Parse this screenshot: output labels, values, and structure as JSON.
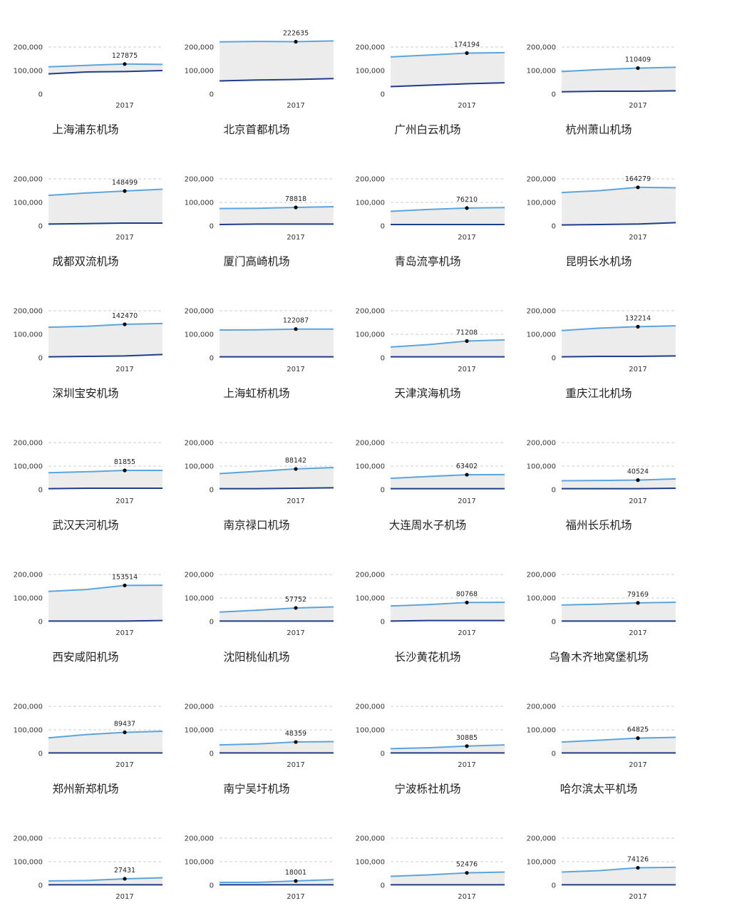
{
  "chart_data": {
    "type": "area",
    "x_tick_label": "2017",
    "y_ticks": [
      "200,000",
      "100,000",
      "0"
    ],
    "ylim": [
      0,
      200000
    ],
    "grid": true,
    "colors": {
      "upper": "#5aa5e0",
      "lower": "#1f3c88",
      "fill": "#ececec",
      "marker": "#000000"
    },
    "panels": [
      {
        "title": "上海浦东机场",
        "label": "127875",
        "upper": [
          116000,
          122000,
          127875,
          126000
        ],
        "lower": [
          86000,
          94000,
          96000,
          100000
        ]
      },
      {
        "title": "北京首都机场",
        "label": "222635",
        "upper": [
          222000,
          224000,
          222635,
          226000
        ],
        "lower": [
          56000,
          60000,
          62000,
          66000
        ]
      },
      {
        "title": "广州白云机场",
        "label": "174194",
        "upper": [
          158000,
          166000,
          174194,
          176000
        ],
        "lower": [
          32000,
          38000,
          44000,
          48000
        ]
      },
      {
        "title": "杭州萧山机场",
        "label": "110409",
        "upper": [
          96000,
          104000,
          110409,
          114000
        ],
        "lower": [
          10000,
          12000,
          12000,
          14000
        ]
      },
      {
        "title": "成都双流机场",
        "label": "148499",
        "upper": [
          130000,
          140000,
          148499,
          156000
        ],
        "lower": [
          8000,
          10000,
          12000,
          12000
        ]
      },
      {
        "title": "厦门高崎机场",
        "label": "78818",
        "upper": [
          74000,
          75000,
          78818,
          82000
        ],
        "lower": [
          6000,
          8000,
          8000,
          8000
        ]
      },
      {
        "title": "青岛流亭机场",
        "label": "76210",
        "upper": [
          62000,
          70000,
          76210,
          78000
        ],
        "lower": [
          6000,
          6000,
          6000,
          6000
        ]
      },
      {
        "title": "昆明长水机场",
        "label": "164279",
        "upper": [
          142000,
          150000,
          164279,
          162000
        ],
        "lower": [
          4000,
          6000,
          8000,
          14000
        ]
      },
      {
        "title": "深圳宝安机场",
        "label": "142470",
        "upper": [
          130000,
          134000,
          142470,
          146000
        ],
        "lower": [
          4000,
          6000,
          8000,
          14000
        ]
      },
      {
        "title": "上海虹桥机场",
        "label": "122087",
        "upper": [
          118000,
          119000,
          122087,
          122000
        ],
        "lower": [
          4000,
          4000,
          4000,
          4000
        ]
      },
      {
        "title": "天津滨海机场",
        "label": "71208",
        "upper": [
          46000,
          56000,
          71208,
          76000
        ],
        "lower": [
          4000,
          4000,
          4000,
          4000
        ]
      },
      {
        "title": "重庆江北机场",
        "label": "132214",
        "upper": [
          116000,
          126000,
          132214,
          136000
        ],
        "lower": [
          4000,
          6000,
          6000,
          8000
        ]
      },
      {
        "title": "武汉天河机场",
        "label": "81855",
        "upper": [
          72000,
          76000,
          81855,
          82000
        ],
        "lower": [
          4000,
          6000,
          6000,
          6000
        ]
      },
      {
        "title": "南京禄口机场",
        "label": "88142",
        "upper": [
          68000,
          78000,
          88142,
          94000
        ],
        "lower": [
          4000,
          4000,
          6000,
          8000
        ]
      },
      {
        "title": "大连周水子机场",
        "label": "63402",
        "upper": [
          48000,
          56000,
          63402,
          64000
        ],
        "lower": [
          4000,
          4000,
          4000,
          4000
        ]
      },
      {
        "title": "福州长乐机场",
        "label": "40524",
        "upper": [
          38000,
          39000,
          40524,
          46000
        ],
        "lower": [
          4000,
          4000,
          4000,
          6000
        ]
      },
      {
        "title": "西安咸阳机场",
        "label": "153514",
        "upper": [
          128000,
          136000,
          153514,
          154000
        ],
        "lower": [
          2000,
          2000,
          2000,
          4000
        ]
      },
      {
        "title": "沈阳桃仙机场",
        "label": "57752",
        "upper": [
          40000,
          48000,
          57752,
          62000
        ],
        "lower": [
          2000,
          2000,
          2000,
          2000
        ]
      },
      {
        "title": "长沙黄花机场",
        "label": "80768",
        "upper": [
          66000,
          72000,
          80768,
          82000
        ],
        "lower": [
          2000,
          4000,
          4000,
          4000
        ]
      },
      {
        "title": "乌鲁木齐地窝堡机场",
        "label": "79169",
        "upper": [
          70000,
          74000,
          79169,
          82000
        ],
        "lower": [
          2000,
          2000,
          2000,
          2000
        ]
      },
      {
        "title": "郑州新郑机场",
        "label": "89437",
        "upper": [
          66000,
          80000,
          89437,
          94000
        ],
        "lower": [
          2000,
          2000,
          2000,
          2000
        ]
      },
      {
        "title": "南宁吴圩机场",
        "label": "48359",
        "upper": [
          36000,
          40000,
          48359,
          50000
        ],
        "lower": [
          2000,
          2000,
          2000,
          2000
        ]
      },
      {
        "title": "宁波栎社机场",
        "label": "30885",
        "upper": [
          20000,
          24000,
          30885,
          36000
        ],
        "lower": [
          2000,
          2000,
          2000,
          2000
        ]
      },
      {
        "title": "哈尔滨太平机场",
        "label": "64825",
        "upper": [
          48000,
          56000,
          64825,
          68000
        ],
        "lower": [
          2000,
          2000,
          2000,
          2000
        ]
      },
      {
        "title": "",
        "label": "27431",
        "upper": [
          18000,
          20000,
          27431,
          32000
        ],
        "lower": [
          2000,
          2000,
          2000,
          2000
        ]
      },
      {
        "title": "",
        "label": "18001",
        "upper": [
          12000,
          12000,
          18001,
          24000
        ],
        "lower": [
          2000,
          2000,
          2000,
          2000
        ]
      },
      {
        "title": "",
        "label": "52476",
        "upper": [
          38000,
          44000,
          52476,
          56000
        ],
        "lower": [
          2000,
          2000,
          2000,
          2000
        ]
      },
      {
        "title": "",
        "label": "74126",
        "upper": [
          56000,
          62000,
          74126,
          76000
        ],
        "lower": [
          2000,
          2000,
          2000,
          2000
        ]
      }
    ]
  }
}
